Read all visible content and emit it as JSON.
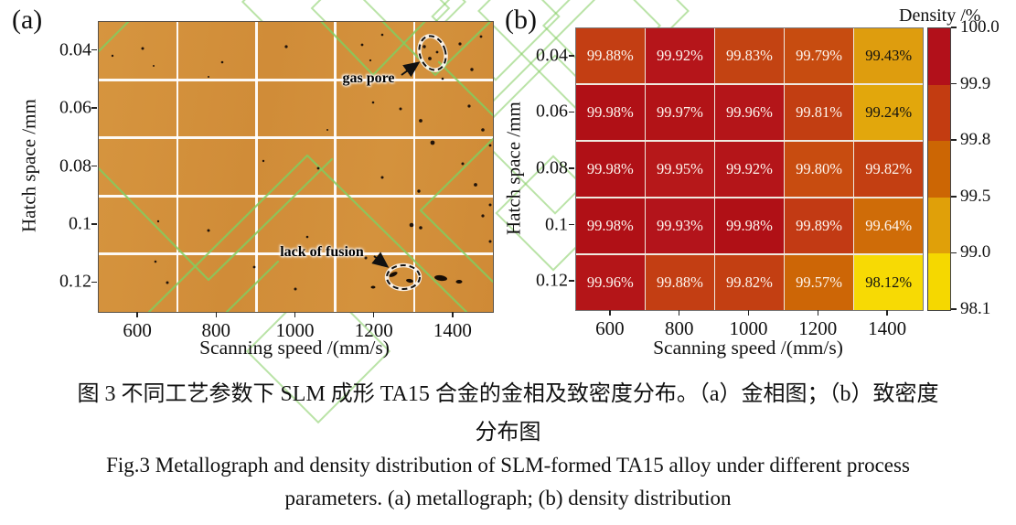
{
  "figure": {
    "panel_a": {
      "label": "(a)",
      "xlabel": "Scanning speed /(mm/s)",
      "ylabel": "Hatch space /mm",
      "x_ticks": [
        "600",
        "800",
        "1000",
        "1200",
        "1400"
      ],
      "y_ticks": [
        "0.04",
        "0.06",
        "0.08",
        "0.1",
        "0.12"
      ],
      "annotations": {
        "gas_pore": "gas pore",
        "lack_of_fusion": "lack of fusion"
      },
      "image_base_color": "#d1903c",
      "gridline_color": "#ffffff",
      "watermark_color": "#82cc5f"
    },
    "panel_b": {
      "label": "(b)",
      "xlabel": "Scanning speed /(mm/s)",
      "ylabel": "Hatch space /mm",
      "x_ticks": [
        "600",
        "800",
        "1000",
        "1200",
        "1400"
      ],
      "y_ticks": [
        "0.04",
        "0.06",
        "0.08",
        "0.1",
        "0.12"
      ]
    },
    "caption": {
      "zh_line1": "图 3 不同工艺参数下 SLM 成形 TA15 合金的金相及致密度分布。（a）金相图；（b）致密度",
      "zh_line2": "分布图",
      "en_line1": "Fig.3 Metallograph and density distribution of SLM-formed TA15 alloy under different process",
      "en_line2": "parameters. (a) metallograph; (b) density distribution"
    }
  },
  "chart_data": {
    "type": "heatmap",
    "title": "",
    "xlabel": "Scanning speed /(mm/s)",
    "ylabel": "Hatch space /mm",
    "x": [
      600,
      800,
      1000,
      1200,
      1400
    ],
    "y": [
      0.04,
      0.06,
      0.08,
      0.1,
      0.12
    ],
    "values": [
      [
        99.88,
        99.92,
        99.83,
        99.79,
        99.43
      ],
      [
        99.98,
        99.97,
        99.96,
        99.81,
        99.24
      ],
      [
        99.98,
        99.95,
        99.92,
        99.8,
        99.82
      ],
      [
        99.98,
        99.93,
        99.98,
        99.89,
        99.64
      ],
      [
        99.96,
        99.88,
        99.82,
        99.57,
        98.12
      ]
    ],
    "labels": [
      [
        "99.88%",
        "99.92%",
        "99.83%",
        "99.79%",
        "99.43%"
      ],
      [
        "99.98%",
        "99.97%",
        "99.96%",
        "99.81%",
        "99.24%"
      ],
      [
        "99.98%",
        "99.95%",
        "99.92%",
        "99.80%",
        "99.82%"
      ],
      [
        "99.98%",
        "99.93%",
        "99.98%",
        "99.89%",
        "99.64%"
      ],
      [
        "99.96%",
        "99.88%",
        "99.82%",
        "99.57%",
        "98.12%"
      ]
    ],
    "cell_colors": [
      [
        "#c33e13",
        "#b5151a",
        "#c34312",
        "#c74c10",
        "#de9d0e"
      ],
      [
        "#b01016",
        "#b21317",
        "#b41519",
        "#c23e12",
        "#e2a70c"
      ],
      [
        "#b01016",
        "#b6181a",
        "#b41519",
        "#c84c10",
        "#c33f12"
      ],
      [
        "#b01016",
        "#b3141b",
        "#b01016",
        "#c23a14",
        "#cf6c08"
      ],
      [
        "#b41518",
        "#c33e13",
        "#c33f12",
        "#cd6606",
        "#f7da04"
      ]
    ],
    "label_dark_text_threshold": 99.5,
    "colorbar": {
      "title": "Density /%",
      "tick_labels": [
        "100.0",
        "99.9",
        "99.8",
        "99.5",
        "99.0",
        "98.1"
      ],
      "segment_colors": [
        "#b2101a",
        "#c33c11",
        "#cc6604",
        "#e0a009",
        "#f5d800"
      ]
    },
    "legend_position": "right",
    "grid": false
  }
}
